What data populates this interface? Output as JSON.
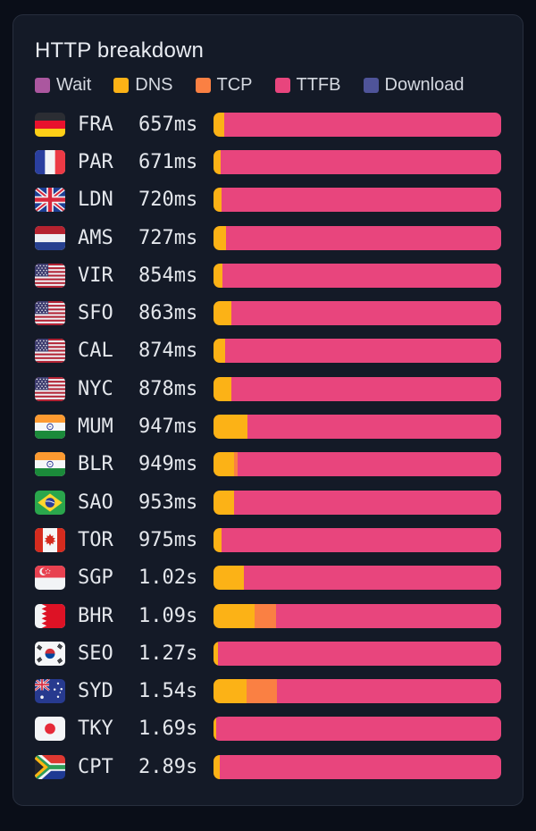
{
  "header": {
    "title": "HTTP breakdown"
  },
  "colors": {
    "wait": "#ab579f",
    "dns": "#fcb216",
    "tcp": "#fa8043",
    "ttfb": "#e8457d",
    "download": "#4f5499",
    "background": "#0a0e18",
    "card_background": "#141a27",
    "card_border": "#272e3d",
    "text": "#e4e7ec"
  },
  "legend": {
    "items": [
      {
        "label": "Wait",
        "key": "wait"
      },
      {
        "label": "DNS",
        "key": "dns"
      },
      {
        "label": "TCP",
        "key": "tcp"
      },
      {
        "label": "TTFB",
        "key": "ttfb"
      },
      {
        "label": "Download",
        "key": "download"
      }
    ]
  },
  "rows": [
    {
      "flag": "germany",
      "code": "FRA",
      "time": "657ms",
      "segments": [
        {
          "phase": "dns",
          "pct": 3.7
        },
        {
          "phase": "ttfb",
          "pct": 96.3
        }
      ]
    },
    {
      "flag": "france",
      "code": "PAR",
      "time": "671ms",
      "segments": [
        {
          "phase": "dns",
          "pct": 2.5
        },
        {
          "phase": "ttfb",
          "pct": 97.5
        }
      ]
    },
    {
      "flag": "uk",
      "code": "LDN",
      "time": "720ms",
      "segments": [
        {
          "phase": "dns",
          "pct": 2.8
        },
        {
          "phase": "ttfb",
          "pct": 97.2
        }
      ]
    },
    {
      "flag": "netherlands",
      "code": "AMS",
      "time": "727ms",
      "segments": [
        {
          "phase": "dns",
          "pct": 4.4
        },
        {
          "phase": "ttfb",
          "pct": 95.6
        }
      ]
    },
    {
      "flag": "usa",
      "code": "VIR",
      "time": "854ms",
      "segments": [
        {
          "phase": "dns",
          "pct": 3.1
        },
        {
          "phase": "ttfb",
          "pct": 96.9
        }
      ]
    },
    {
      "flag": "usa",
      "code": "SFO",
      "time": "863ms",
      "segments": [
        {
          "phase": "dns",
          "pct": 6.2
        },
        {
          "phase": "ttfb",
          "pct": 93.8
        }
      ]
    },
    {
      "flag": "usa",
      "code": "CAL",
      "time": "874ms",
      "segments": [
        {
          "phase": "dns",
          "pct": 4.0
        },
        {
          "phase": "ttfb",
          "pct": 96.0
        }
      ]
    },
    {
      "flag": "usa",
      "code": "NYC",
      "time": "878ms",
      "segments": [
        {
          "phase": "dns",
          "pct": 6.2
        },
        {
          "phase": "ttfb",
          "pct": 93.8
        }
      ]
    },
    {
      "flag": "india",
      "code": "MUM",
      "time": "947ms",
      "segments": [
        {
          "phase": "dns",
          "pct": 11.8
        },
        {
          "phase": "ttfb",
          "pct": 88.2
        }
      ]
    },
    {
      "flag": "india",
      "code": "BLR",
      "time": "949ms",
      "segments": [
        {
          "phase": "dns",
          "pct": 7.2
        },
        {
          "phase": "tcp",
          "pct": 1.2
        },
        {
          "phase": "ttfb",
          "pct": 91.6
        }
      ]
    },
    {
      "flag": "brazil",
      "code": "SAO",
      "time": "953ms",
      "segments": [
        {
          "phase": "dns",
          "pct": 7.2
        },
        {
          "phase": "ttfb",
          "pct": 92.8
        }
      ]
    },
    {
      "flag": "canada",
      "code": "TOR",
      "time": "975ms",
      "segments": [
        {
          "phase": "dns",
          "pct": 2.8
        },
        {
          "phase": "ttfb",
          "pct": 97.2
        }
      ]
    },
    {
      "flag": "singapore",
      "code": "SGP",
      "time": "1.02s",
      "segments": [
        {
          "phase": "dns",
          "pct": 10.6
        },
        {
          "phase": "ttfb",
          "pct": 89.4
        }
      ]
    },
    {
      "flag": "bahrain",
      "code": "BHR",
      "time": "1.09s",
      "segments": [
        {
          "phase": "dns",
          "pct": 14.3
        },
        {
          "phase": "tcp",
          "pct": 7.5
        },
        {
          "phase": "ttfb",
          "pct": 78.2
        }
      ]
    },
    {
      "flag": "south-korea",
      "code": "SEO",
      "time": "1.27s",
      "segments": [
        {
          "phase": "dns",
          "pct": 1.6
        },
        {
          "phase": "ttfb",
          "pct": 98.4
        }
      ]
    },
    {
      "flag": "australia",
      "code": "SYD",
      "time": "1.54s",
      "segments": [
        {
          "phase": "dns",
          "pct": 11.5
        },
        {
          "phase": "tcp",
          "pct": 10.6
        },
        {
          "phase": "ttfb",
          "pct": 77.9
        }
      ]
    },
    {
      "flag": "japan",
      "code": "TKY",
      "time": "1.69s",
      "segments": [
        {
          "phase": "dns",
          "pct": 1.0
        },
        {
          "phase": "ttfb",
          "pct": 99.0
        }
      ]
    },
    {
      "flag": "south-africa",
      "code": "CPT",
      "time": "2.89s",
      "segments": [
        {
          "phase": "dns",
          "pct": 2.2
        },
        {
          "phase": "ttfb",
          "pct": 97.8
        }
      ]
    }
  ],
  "chart_data": {
    "type": "bar",
    "orientation": "horizontal",
    "stacked": true,
    "normalized_percent": true,
    "title": "HTTP breakdown",
    "legend_entries": [
      "Wait",
      "DNS",
      "TCP",
      "TTFB",
      "Download"
    ],
    "legend_position": "top",
    "categories": [
      "FRA",
      "PAR",
      "LDN",
      "AMS",
      "VIR",
      "SFO",
      "CAL",
      "NYC",
      "MUM",
      "BLR",
      "SAO",
      "TOR",
      "SGP",
      "BHR",
      "SEO",
      "SYD",
      "TKY",
      "CPT"
    ],
    "total_time_labels": [
      "657ms",
      "671ms",
      "720ms",
      "727ms",
      "854ms",
      "863ms",
      "874ms",
      "878ms",
      "947ms",
      "949ms",
      "953ms",
      "975ms",
      "1.02s",
      "1.09s",
      "1.27s",
      "1.54s",
      "1.69s",
      "2.89s"
    ],
    "series": [
      {
        "name": "DNS",
        "unit": "% of total",
        "values": [
          3.7,
          2.5,
          2.8,
          4.4,
          3.1,
          6.2,
          4.0,
          6.2,
          11.8,
          7.2,
          7.2,
          2.8,
          10.6,
          14.3,
          1.6,
          11.5,
          1.0,
          2.2
        ]
      },
      {
        "name": "TCP",
        "unit": "% of total",
        "values": [
          0,
          0,
          0,
          0,
          0,
          0,
          0,
          0,
          0,
          1.2,
          0,
          0,
          0,
          7.5,
          0,
          10.6,
          0,
          0
        ]
      },
      {
        "name": "TTFB",
        "unit": "% of total",
        "values": [
          96.3,
          97.5,
          97.2,
          95.6,
          96.9,
          93.8,
          96.0,
          93.8,
          88.2,
          91.6,
          92.8,
          97.2,
          89.4,
          78.2,
          98.4,
          77.9,
          99.0,
          97.8
        ]
      }
    ]
  }
}
